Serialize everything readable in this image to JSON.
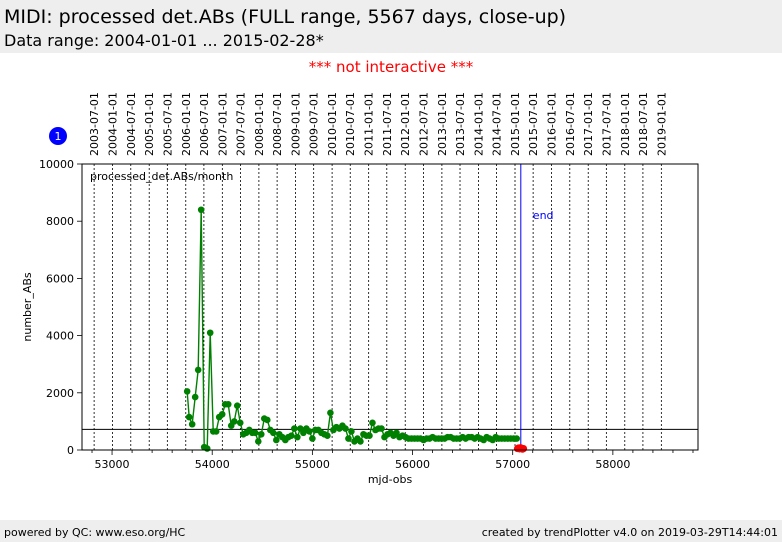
{
  "header": {
    "title": "MIDI: processed det.ABs (FULL range, 5567 days, close-up)",
    "subtitle": "Data range: 2004-01-01 ... 2015-02-28*"
  },
  "notice": "*** not interactive ***",
  "badge": "1",
  "footer": {
    "left": "powered by QC: www.eso.org/HC",
    "right": "created by trendPlotter v4.0 on 2019-03-29T14:44:01"
  },
  "colors": {
    "series": "#008000",
    "recent": "#ff0000",
    "marker": "#0000ff",
    "header_bg": "#eeeeee"
  },
  "chart_data": {
    "type": "scatter",
    "xlabel": "mjd-obs",
    "ylabel": "number_ABs",
    "xlim": [
      52700,
      58850
    ],
    "ylim": [
      0,
      10000
    ],
    "x_ticks": [
      53000,
      54000,
      55000,
      56000,
      57000,
      58000
    ],
    "y_ticks": [
      0,
      2000,
      4000,
      6000,
      8000,
      10000
    ],
    "inner_label": "processed_det.ABs/month",
    "reference_line": 720,
    "end_marker": {
      "x": 57081,
      "label": "end"
    },
    "date_ticks": [
      {
        "mjd": 52821,
        "label": "2003-07-01"
      },
      {
        "mjd": 53005,
        "label": "2004-01-01"
      },
      {
        "mjd": 53187,
        "label": "2004-07-01"
      },
      {
        "mjd": 53371,
        "label": "2005-01-01"
      },
      {
        "mjd": 53552,
        "label": "2005-07-01"
      },
      {
        "mjd": 53736,
        "label": "2006-01-01"
      },
      {
        "mjd": 53917,
        "label": "2006-07-01"
      },
      {
        "mjd": 54101,
        "label": "2007-01-01"
      },
      {
        "mjd": 54282,
        "label": "2007-07-01"
      },
      {
        "mjd": 54466,
        "label": "2008-01-01"
      },
      {
        "mjd": 54648,
        "label": "2008-07-01"
      },
      {
        "mjd": 54832,
        "label": "2009-01-01"
      },
      {
        "mjd": 55013,
        "label": "2009-07-01"
      },
      {
        "mjd": 55197,
        "label": "2010-01-01"
      },
      {
        "mjd": 55378,
        "label": "2010-07-01"
      },
      {
        "mjd": 55562,
        "label": "2011-01-01"
      },
      {
        "mjd": 55743,
        "label": "2011-07-01"
      },
      {
        "mjd": 55927,
        "label": "2012-01-01"
      },
      {
        "mjd": 56109,
        "label": "2012-07-01"
      },
      {
        "mjd": 56293,
        "label": "2013-01-01"
      },
      {
        "mjd": 56474,
        "label": "2013-07-01"
      },
      {
        "mjd": 56658,
        "label": "2014-01-01"
      },
      {
        "mjd": 56839,
        "label": "2014-07-01"
      },
      {
        "mjd": 57023,
        "label": "2015-01-01"
      },
      {
        "mjd": 57204,
        "label": "2015-07-01"
      },
      {
        "mjd": 57388,
        "label": "2016-01-01"
      },
      {
        "mjd": 57570,
        "label": "2016-07-01"
      },
      {
        "mjd": 57754,
        "label": "2017-01-01"
      },
      {
        "mjd": 57935,
        "label": "2017-07-01"
      },
      {
        "mjd": 58119,
        "label": "2018-01-01"
      },
      {
        "mjd": 58300,
        "label": "2018-07-01"
      },
      {
        "mjd": 58484,
        "label": "2019-01-01"
      }
    ],
    "series": [
      {
        "values": [
          [
            53750,
            2050
          ],
          [
            53770,
            1150
          ],
          [
            53800,
            900
          ],
          [
            53830,
            1850
          ],
          [
            53860,
            2800
          ],
          [
            53890,
            8400
          ],
          [
            53920,
            100
          ],
          [
            53950,
            50
          ],
          [
            53980,
            4100
          ],
          [
            54010,
            650
          ],
          [
            54040,
            650
          ],
          [
            54070,
            1150
          ],
          [
            54100,
            1250
          ],
          [
            54130,
            1600
          ],
          [
            54160,
            1600
          ],
          [
            54190,
            850
          ],
          [
            54220,
            1000
          ],
          [
            54250,
            1550
          ],
          [
            54280,
            950
          ],
          [
            54310,
            550
          ],
          [
            54340,
            600
          ],
          [
            54370,
            700
          ],
          [
            54400,
            600
          ],
          [
            54430,
            600
          ],
          [
            54460,
            300
          ],
          [
            54490,
            550
          ],
          [
            54520,
            1100
          ],
          [
            54550,
            1050
          ],
          [
            54580,
            700
          ],
          [
            54610,
            600
          ],
          [
            54640,
            350
          ],
          [
            54670,
            550
          ],
          [
            54700,
            450
          ],
          [
            54730,
            350
          ],
          [
            54760,
            450
          ],
          [
            54790,
            500
          ],
          [
            54820,
            750
          ],
          [
            54850,
            450
          ],
          [
            54880,
            750
          ],
          [
            54910,
            600
          ],
          [
            54940,
            750
          ],
          [
            54970,
            650
          ],
          [
            55000,
            400
          ],
          [
            55030,
            700
          ],
          [
            55060,
            700
          ],
          [
            55090,
            600
          ],
          [
            55120,
            550
          ],
          [
            55150,
            500
          ],
          [
            55180,
            1300
          ],
          [
            55210,
            700
          ],
          [
            55240,
            800
          ],
          [
            55270,
            750
          ],
          [
            55300,
            850
          ],
          [
            55330,
            750
          ],
          [
            55360,
            400
          ],
          [
            55390,
            650
          ],
          [
            55420,
            300
          ],
          [
            55450,
            400
          ],
          [
            55480,
            300
          ],
          [
            55510,
            550
          ],
          [
            55540,
            500
          ],
          [
            55570,
            500
          ],
          [
            55600,
            950
          ],
          [
            55630,
            700
          ],
          [
            55660,
            750
          ],
          [
            55690,
            750
          ],
          [
            55720,
            450
          ],
          [
            55750,
            550
          ],
          [
            55780,
            600
          ],
          [
            55810,
            500
          ],
          [
            55840,
            600
          ],
          [
            55870,
            450
          ],
          [
            55900,
            500
          ],
          [
            55930,
            450
          ],
          [
            55960,
            400
          ],
          [
            55990,
            400
          ],
          [
            56020,
            400
          ],
          [
            56050,
            400
          ],
          [
            56080,
            400
          ],
          [
            56110,
            350
          ],
          [
            56140,
            400
          ],
          [
            56170,
            400
          ],
          [
            56200,
            450
          ],
          [
            56230,
            400
          ],
          [
            56260,
            400
          ],
          [
            56290,
            400
          ],
          [
            56320,
            400
          ],
          [
            56350,
            450
          ],
          [
            56380,
            450
          ],
          [
            56410,
            400
          ],
          [
            56440,
            400
          ],
          [
            56470,
            400
          ],
          [
            56500,
            450
          ],
          [
            56530,
            400
          ],
          [
            56560,
            450
          ],
          [
            56590,
            450
          ],
          [
            56620,
            400
          ],
          [
            56650,
            450
          ],
          [
            56680,
            400
          ],
          [
            56710,
            350
          ],
          [
            56740,
            450
          ],
          [
            56770,
            400
          ],
          [
            56800,
            350
          ],
          [
            56830,
            450
          ],
          [
            56860,
            400
          ],
          [
            56890,
            400
          ],
          [
            56920,
            400
          ],
          [
            56950,
            400
          ],
          [
            56980,
            400
          ],
          [
            57010,
            400
          ],
          [
            57040,
            400
          ]
        ]
      },
      {
        "values": [
          [
            57048,
            50
          ],
          [
            57058,
            70
          ],
          [
            57068,
            40
          ],
          [
            57078,
            80
          ],
          [
            57088,
            60
          ],
          [
            57098,
            30
          ],
          [
            57108,
            50
          ]
        ]
      }
    ]
  }
}
